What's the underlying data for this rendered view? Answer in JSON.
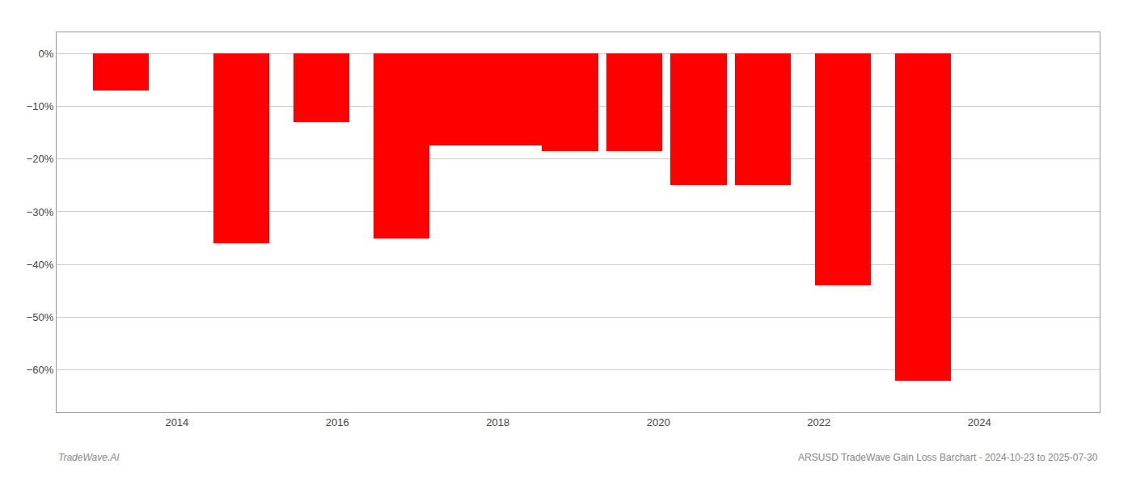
{
  "chart_data": {
    "type": "bar",
    "x": [
      2013.3,
      2014.8,
      2015.8,
      2016.8,
      2017.5,
      2018.2,
      2018.9,
      2019.7,
      2020.5,
      2021.3,
      2022.3,
      2023.3
    ],
    "values": [
      -7.0,
      -36.0,
      -13.0,
      -35.0,
      -17.5,
      -17.5,
      -18.5,
      -18.5,
      -25.0,
      -25.0,
      -44.0,
      -62.0
    ],
    "color": "#ff0000",
    "xlim": [
      2012.5,
      2025.5
    ],
    "xticks": [
      2014,
      2016,
      2018,
      2020,
      2022,
      2024
    ],
    "ylim": [
      -68,
      4
    ],
    "yticks": [
      {
        "value": 0,
        "label": "0%"
      },
      {
        "value": -10,
        "label": "−10%"
      },
      {
        "value": -20,
        "label": "−20%"
      },
      {
        "value": -30,
        "label": "−30%"
      },
      {
        "value": -40,
        "label": "−40%"
      },
      {
        "value": -50,
        "label": "−50%"
      },
      {
        "value": -60,
        "label": "−60%"
      }
    ],
    "grid": true,
    "annotations": [
      {
        "text": "TradeWave.AI"
      },
      {
        "text": "ARSUSD TradeWave Gain Loss Barchart - 2024-10-23 to 2025-07-30"
      }
    ]
  }
}
